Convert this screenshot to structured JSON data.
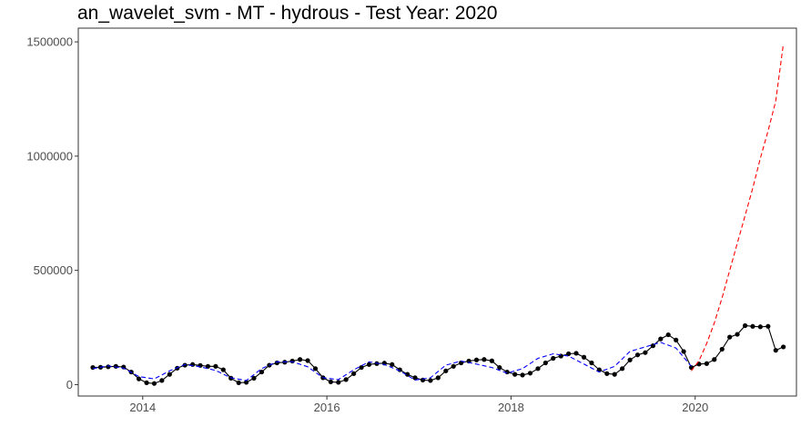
{
  "chart_data": {
    "type": "line",
    "title": "an_wavelet_svm - MT - hydrous - Test Year: 2020",
    "xlabel": "",
    "ylabel": "",
    "xlim": [
      2013.3,
      2021.1
    ],
    "ylim": [
      -50000,
      1560000
    ],
    "x_ticks": [
      2014,
      2016,
      2018,
      2020
    ],
    "x_tick_labels": [
      "2014",
      "2016",
      "2018",
      "2020"
    ],
    "y_ticks": [
      0,
      500000,
      1000000,
      1500000
    ],
    "y_tick_labels": [
      "0",
      "500000",
      "1000000",
      "1500000"
    ],
    "grid": false,
    "legend": "none",
    "series": [
      {
        "role": "actual",
        "color": "#000000",
        "style": "solid-with-points",
        "x": [
          2013.458,
          2013.542,
          2013.625,
          2013.708,
          2013.792,
          2013.875,
          2013.958,
          2014.042,
          2014.125,
          2014.208,
          2014.292,
          2014.375,
          2014.458,
          2014.542,
          2014.625,
          2014.708,
          2014.792,
          2014.875,
          2014.958,
          2015.042,
          2015.125,
          2015.208,
          2015.292,
          2015.375,
          2015.458,
          2015.542,
          2015.625,
          2015.708,
          2015.792,
          2015.875,
          2015.958,
          2016.042,
          2016.125,
          2016.208,
          2016.292,
          2016.375,
          2016.458,
          2016.542,
          2016.625,
          2016.708,
          2016.792,
          2016.875,
          2016.958,
          2017.042,
          2017.125,
          2017.208,
          2017.292,
          2017.375,
          2017.458,
          2017.542,
          2017.625,
          2017.708,
          2017.792,
          2017.875,
          2017.958,
          2018.042,
          2018.125,
          2018.208,
          2018.292,
          2018.375,
          2018.458,
          2018.542,
          2018.625,
          2018.708,
          2018.792,
          2018.875,
          2018.958,
          2019.042,
          2019.125,
          2019.208,
          2019.292,
          2019.375,
          2019.458,
          2019.542,
          2019.625,
          2019.708,
          2019.792,
          2019.875,
          2019.958,
          2020.042,
          2020.125,
          2020.208,
          2020.292,
          2020.375,
          2020.458,
          2020.542,
          2020.625,
          2020.708,
          2020.792,
          2020.875,
          2020.958
        ],
        "y": [
          75000,
          76000,
          78000,
          80000,
          77000,
          55000,
          25000,
          8000,
          5000,
          18000,
          45000,
          72000,
          85000,
          88000,
          84000,
          80000,
          80000,
          65000,
          28000,
          8000,
          10000,
          28000,
          55000,
          85000,
          95000,
          98000,
          103000,
          110000,
          105000,
          70000,
          30000,
          12000,
          10000,
          22000,
          48000,
          75000,
          88000,
          92000,
          94000,
          88000,
          65000,
          45000,
          30000,
          20000,
          18000,
          30000,
          60000,
          80000,
          95000,
          103000,
          108000,
          110000,
          104000,
          75000,
          55000,
          45000,
          42000,
          50000,
          70000,
          95000,
          115000,
          125000,
          135000,
          137000,
          120000,
          95000,
          65000,
          48000,
          45000,
          70000,
          108000,
          130000,
          140000,
          170000,
          200000,
          218000,
          195000,
          145000,
          75000,
          90000,
          92000,
          110000,
          155000,
          208000,
          220000,
          258000,
          255000,
          253000,
          255000,
          150000,
          165000
        ]
      },
      {
        "role": "fitted",
        "color": "#0000ff",
        "style": "dashed",
        "x": [
          2013.458,
          2013.625,
          2013.792,
          2013.958,
          2014.125,
          2014.292,
          2014.458,
          2014.625,
          2014.792,
          2014.958,
          2015.125,
          2015.292,
          2015.458,
          2015.625,
          2015.792,
          2015.958,
          2016.125,
          2016.292,
          2016.458,
          2016.625,
          2016.792,
          2016.958,
          2017.125,
          2017.292,
          2017.458,
          2017.625,
          2017.792,
          2017.958,
          2018.125,
          2018.292,
          2018.458,
          2018.625,
          2018.792,
          2018.958,
          2019.125,
          2019.292,
          2019.458,
          2019.625,
          2019.792,
          2019.958
        ],
        "y": [
          70000,
          82000,
          72000,
          35000,
          25000,
          60000,
          88000,
          78000,
          62000,
          30000,
          18000,
          70000,
          100000,
          100000,
          78000,
          30000,
          22000,
          65000,
          100000,
          88000,
          60000,
          20000,
          30000,
          85000,
          103000,
          90000,
          75000,
          50000,
          70000,
          115000,
          135000,
          125000,
          90000,
          55000,
          80000,
          145000,
          165000,
          185000,
          160000,
          80000
        ]
      },
      {
        "role": "forecast",
        "color": "#ff0000",
        "style": "dashed",
        "x": [
          2019.958,
          2020.042,
          2020.125,
          2020.208,
          2020.292,
          2020.375,
          2020.458,
          2020.542,
          2020.625,
          2020.708,
          2020.792,
          2020.875,
          2020.958
        ],
        "y": [
          60000,
          105000,
          180000,
          270000,
          380000,
          500000,
          620000,
          740000,
          860000,
          990000,
          1110000,
          1240000,
          1490000
        ]
      }
    ]
  }
}
